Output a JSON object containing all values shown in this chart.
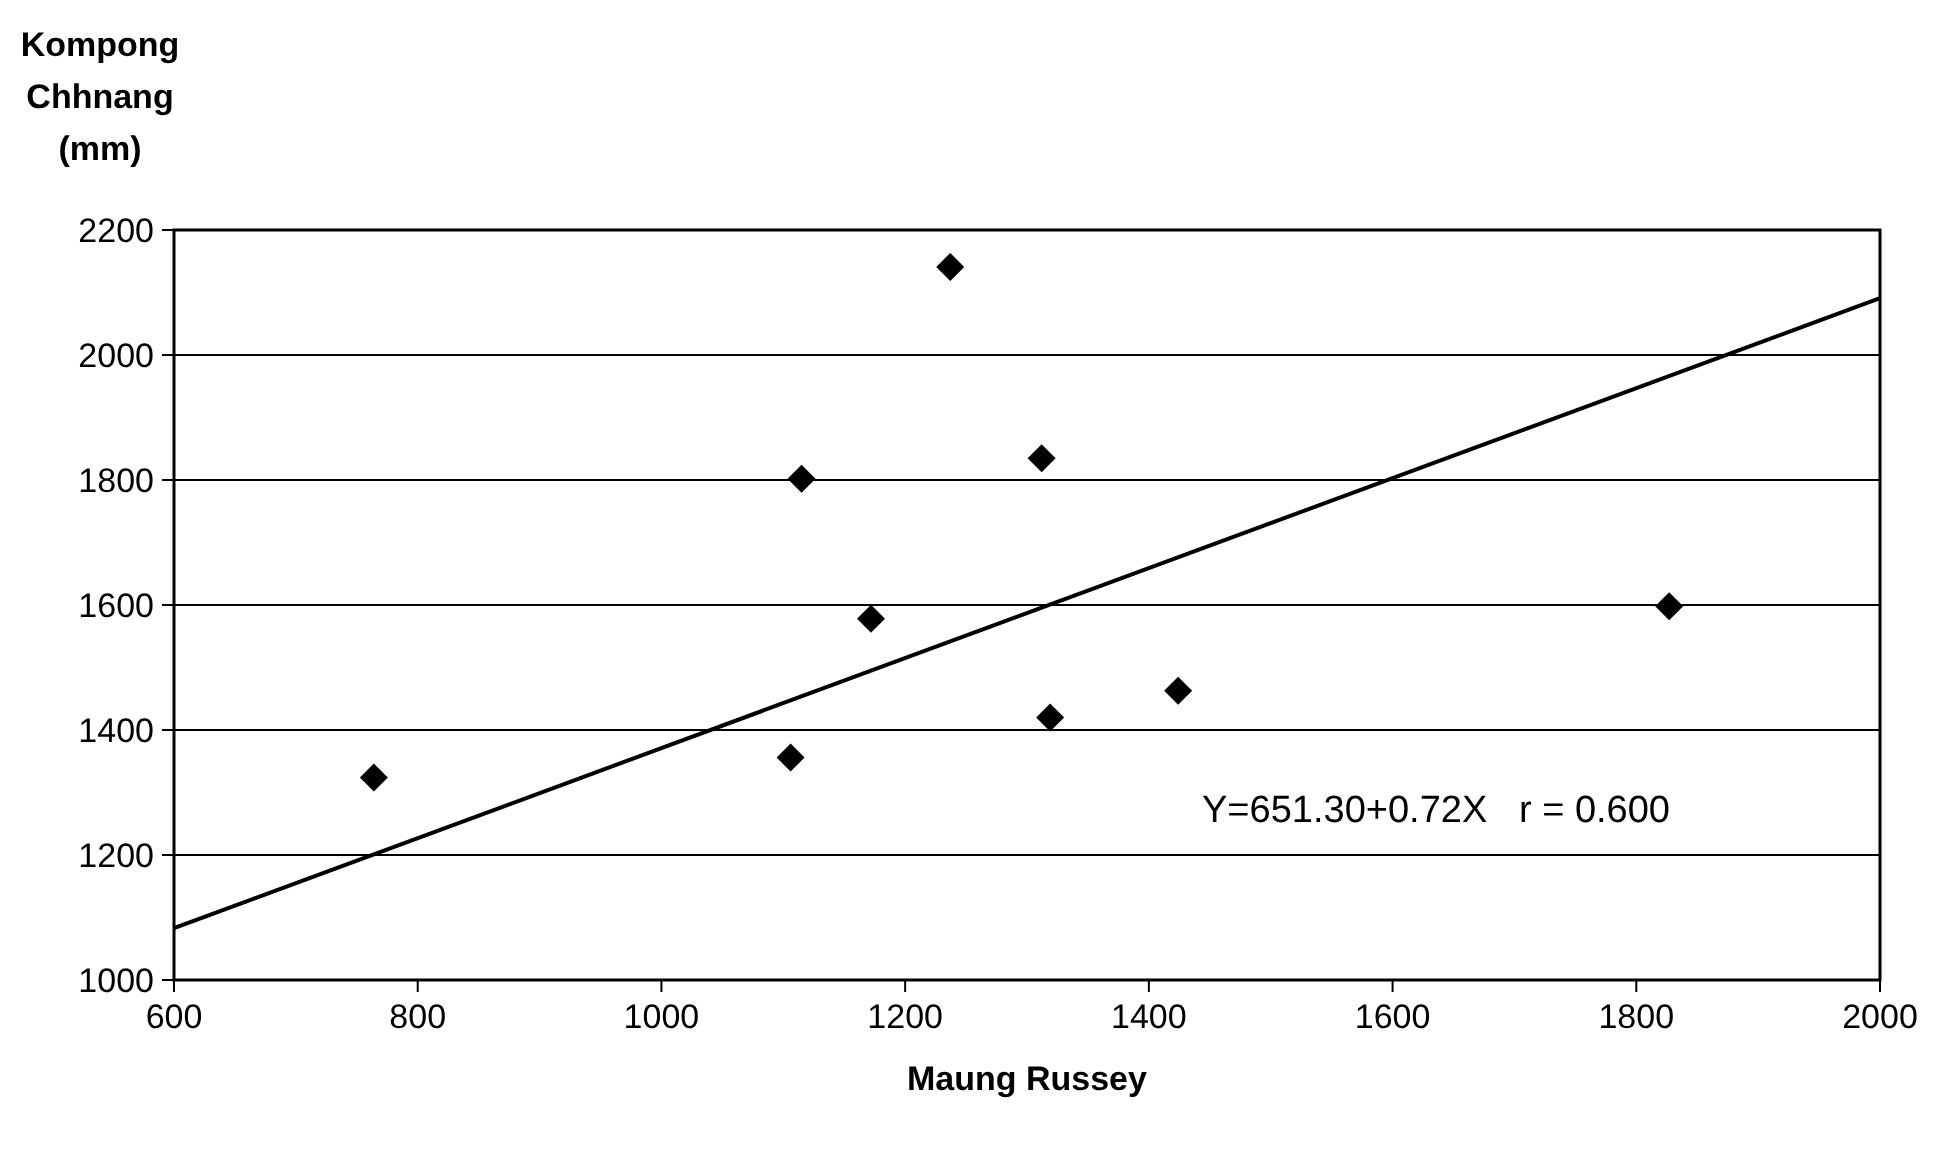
{
  "chart_data": {
    "type": "scatter",
    "xlabel": "Maung Russey",
    "ylabel": "Kompong Chhnang (mm)",
    "x": [
      764,
      1106,
      1115,
      1172,
      1237,
      1312,
      1319,
      1424,
      1827
    ],
    "series": [
      {
        "color": "#000000",
        "marker": "diamond",
        "values": [
          1324,
          1356,
          1802,
          1578,
          2141,
          1835,
          1420,
          1463,
          1598
        ]
      },
      {
        "type": "line",
        "color": "#000000",
        "marker": "none",
        "line_style": "solid",
        "x": [
          600,
          2000
        ],
        "values": [
          1083,
          2091
        ]
      }
    ],
    "xlim": [
      600,
      2000
    ],
    "xticks": [
      600,
      800,
      1000,
      1200,
      1400,
      1600,
      1800,
      2000
    ],
    "ylim": [
      1000,
      2200
    ],
    "yticks": [
      1000,
      1200,
      1400,
      1600,
      1800,
      2000,
      2200
    ],
    "grid": "y",
    "annotations": [
      "Y=651.30+0.72X   r = 0.600"
    ]
  }
}
